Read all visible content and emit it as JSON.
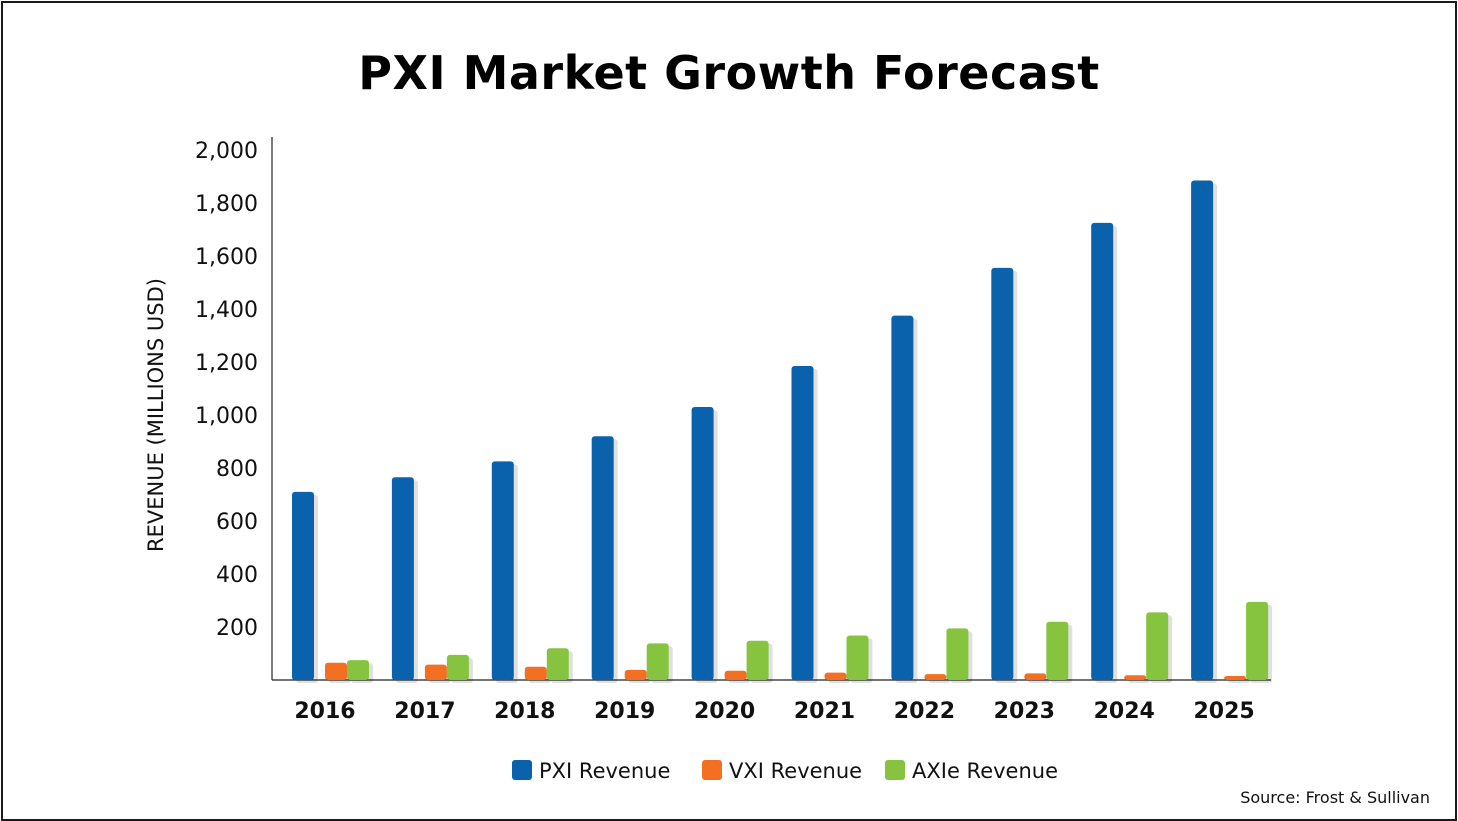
{
  "chart_data": {
    "type": "bar",
    "title": "PXI Market Growth Forecast",
    "ylabel": "REVENUE (MILLIONS USD)",
    "xlabel": "",
    "ylim": [
      0,
      2000
    ],
    "yticks": [
      200,
      400,
      600,
      800,
      1000,
      1200,
      1400,
      1600,
      1800,
      2000
    ],
    "ytick_labels": [
      "200",
      "400",
      "600",
      "800",
      "1,000",
      "1,200",
      "1,400",
      "1,600",
      "1,800",
      "2,000"
    ],
    "categories": [
      "2016",
      "2017",
      "2018",
      "2019",
      "2020",
      "2021",
      "2022",
      "2023",
      "2024",
      "2025"
    ],
    "series": [
      {
        "name": "PXI Revenue",
        "color": "#0a62ad",
        "values": [
          710,
          765,
          825,
          920,
          1030,
          1185,
          1375,
          1555,
          1725,
          1885
        ]
      },
      {
        "name": "VXI Revenue",
        "color": "#f36f21",
        "values": [
          65,
          58,
          50,
          38,
          35,
          28,
          22,
          25,
          18,
          15
        ]
      },
      {
        "name": "AXIe Revenue",
        "color": "#86c440",
        "values": [
          75,
          95,
          120,
          138,
          148,
          168,
          195,
          220,
          255,
          295
        ]
      }
    ],
    "grid": false,
    "legend_position": "bottom"
  },
  "source": "Source: Frost & Sullivan"
}
